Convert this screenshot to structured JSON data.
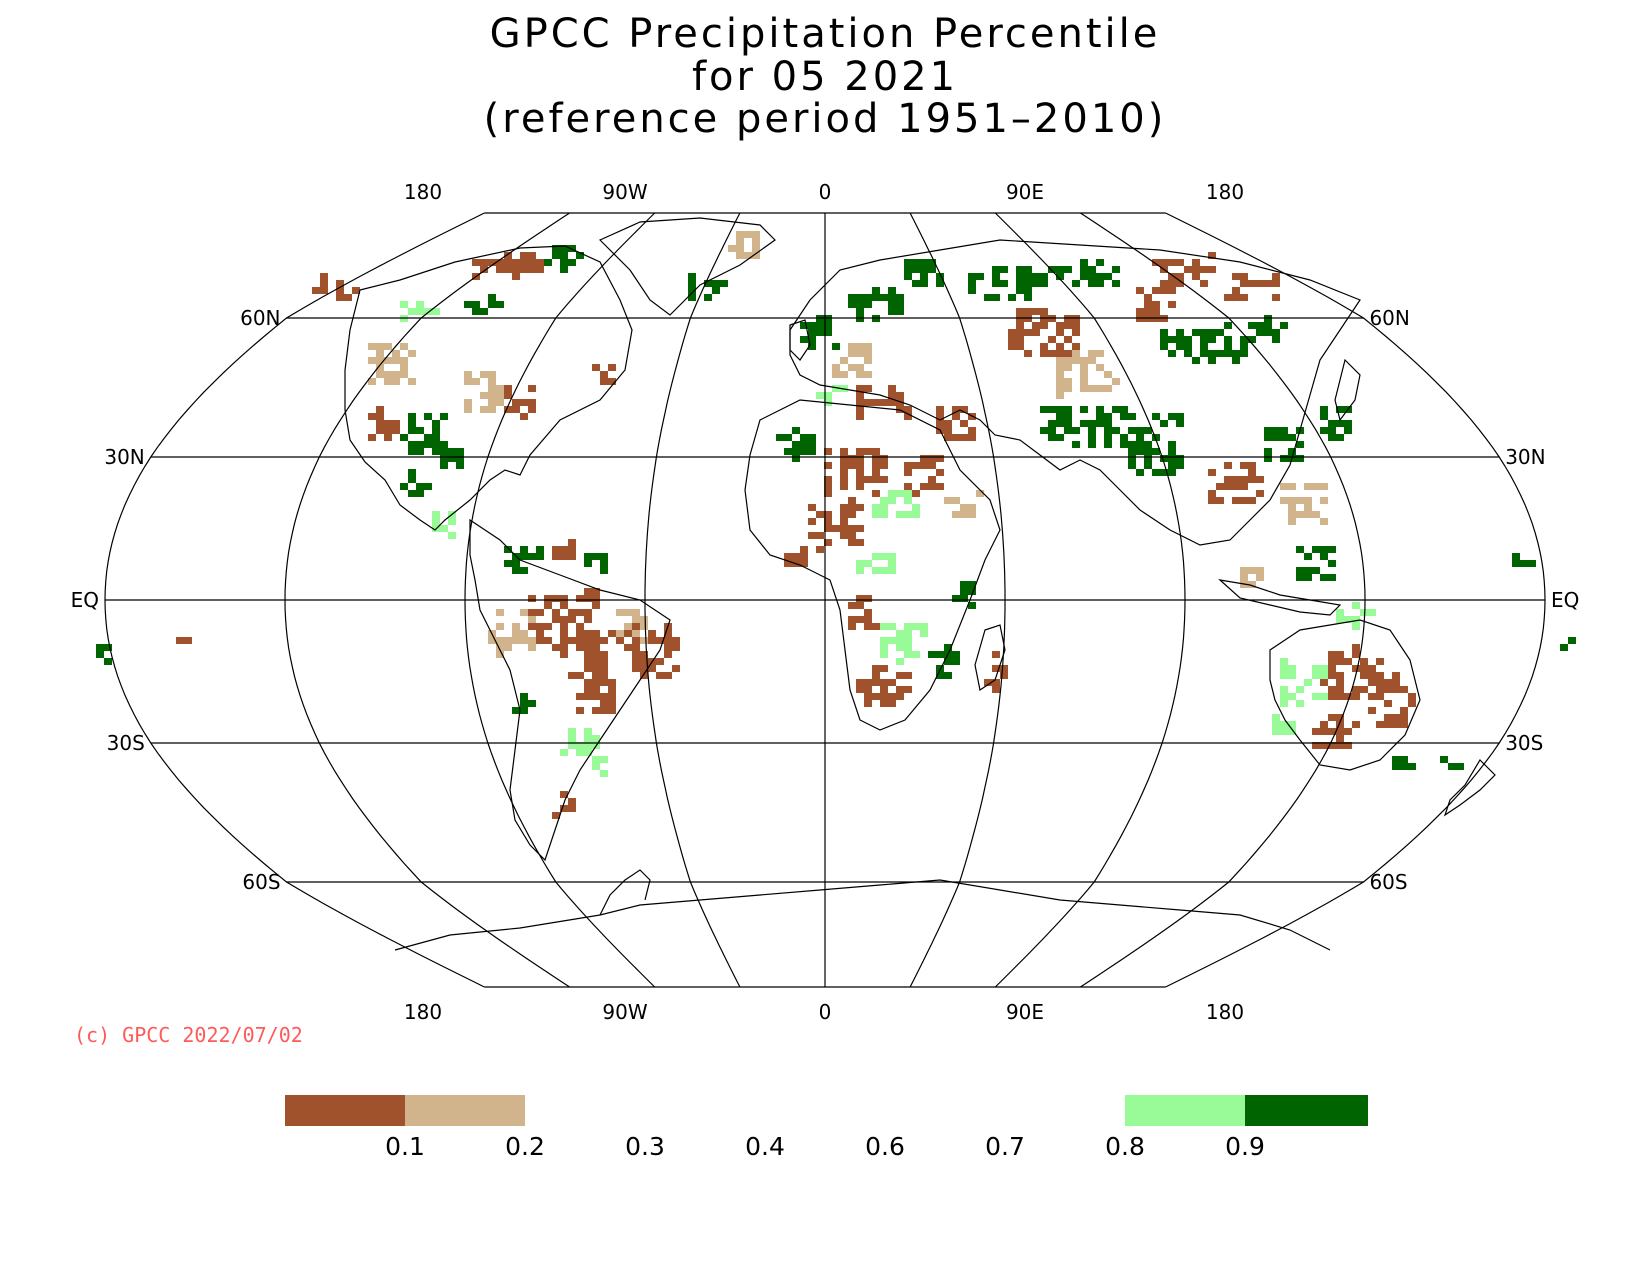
{
  "title": {
    "line1": "GPCC Precipitation Percentile",
    "line2": "for 05 2021",
    "line3": "(reference period 1951–2010)"
  },
  "map": {
    "projection": "Robinson",
    "meridian_labels": [
      "180",
      "90W",
      "0",
      "90E",
      "180"
    ],
    "parallel_labels": [
      "60N",
      "30N",
      "EQ",
      "30S",
      "60S"
    ],
    "grid_line_color": "#000000",
    "coastline_color": "#000000"
  },
  "copyright": {
    "text": "(c) GPCC 2022/07/02",
    "color": "#ff5a5a"
  },
  "legend": {
    "swatches": [
      {
        "range": "< 0.1",
        "color": "#a0522d"
      },
      {
        "range": "0.1 – 0.2",
        "color": "#d2b48c"
      },
      {
        "range": "0.8 – 0.9",
        "color": "#98fb98"
      },
      {
        "range": "> 0.9",
        "color": "#006400"
      }
    ],
    "tick_labels": [
      "0.1",
      "0.2",
      "0.3",
      "0.4",
      "0.6",
      "0.7",
      "0.8",
      "0.9"
    ]
  },
  "colors": {
    "very_dry": "#a0522d",
    "dry": "#d2b48c",
    "wet": "#98fb98",
    "very_wet": "#006400"
  }
}
